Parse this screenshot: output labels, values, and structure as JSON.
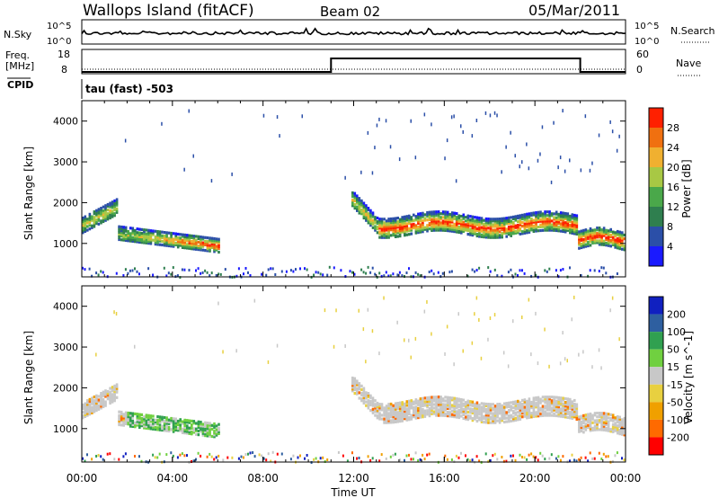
{
  "header": {
    "title": "Wallops Island (fitACF)",
    "beam": "Beam 02",
    "date": "05/Mar/2011"
  },
  "sky_panel": {
    "left_label": "N.Sky",
    "right_label": "N.Search",
    "left_ticks": [
      "10^5",
      "10^0"
    ],
    "right_ticks": [
      "10^5",
      "10^0"
    ]
  },
  "freq_panel": {
    "left_label_1": "Freq.",
    "left_label_2": "[MHz]",
    "left_ticks": [
      "18",
      "8"
    ],
    "right_label": "Nave",
    "right_ticks": [
      "60",
      "0"
    ]
  },
  "cpid": {
    "label": "CPID",
    "value": "tau (fast) -503"
  },
  "colors": {
    "power": [
      "#1a1aff",
      "#2b4fa8",
      "#2f7f4f",
      "#4aa84a",
      "#a8c844",
      "#f0b030",
      "#f07010",
      "#ff2000"
    ],
    "velocity": [
      "#ff0000",
      "#ff6a00",
      "#f0a000",
      "#e8d040",
      "#c8c8c8",
      "#70d040",
      "#30a050",
      "#2e5fa0",
      "#1020c0"
    ]
  },
  "chart_data": [
    {
      "type": "heatmap",
      "name_of_quantity": "Power",
      "xlabel": "",
      "ylabel": "Slant Range [km]",
      "ylim": [
        180,
        4500
      ],
      "xlim_hours": [
        0,
        24
      ],
      "y_ticks": [
        "1000",
        "2000",
        "3000",
        "4000"
      ],
      "colorbar_label": "Power [dB]",
      "colorbar_ticks": [
        "4",
        "8",
        "12",
        "16",
        "20",
        "24",
        "28"
      ]
    },
    {
      "type": "heatmap",
      "name_of_quantity": "Velocity",
      "xlabel": "Time UT",
      "ylabel": "Slant Range [km]",
      "ylim": [
        180,
        4500
      ],
      "xlim_hours": [
        0,
        24
      ],
      "y_ticks": [
        "1000",
        "2000",
        "3000",
        "4000"
      ],
      "x_ticks": [
        "00:00",
        "04:00",
        "08:00",
        "12:00",
        "16:00",
        "20:00",
        "00:00"
      ],
      "colorbar_label": "Velocity [m s^-1]",
      "colorbar_ticks": [
        "200",
        "100",
        "50",
        "15",
        "-15",
        "-50",
        "-100",
        "-200"
      ]
    }
  ],
  "frequency_trace": {
    "segments": [
      {
        "from_hour": 0,
        "to_hour": 11,
        "value_mhz": 8
      },
      {
        "from_hour": 11,
        "to_hour": 22,
        "value_mhz": 14.5
      },
      {
        "from_hour": 22,
        "to_hour": 24,
        "value_mhz": 8
      }
    ]
  }
}
